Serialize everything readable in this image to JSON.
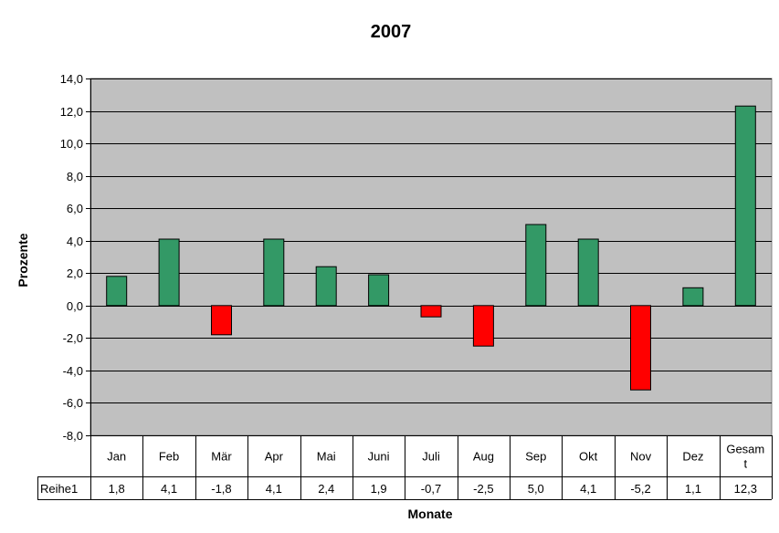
{
  "chart_data": {
    "type": "bar",
    "title": "2007",
    "xlabel": "Monate",
    "ylabel": "Prozente",
    "ylim": [
      -8,
      14
    ],
    "y_ticks": [
      "14,0",
      "12,0",
      "10,0",
      "8,0",
      "6,0",
      "4,0",
      "2,0",
      "0,0",
      "-2,0",
      "-4,0",
      "-6,0",
      "-8,0"
    ],
    "y_tick_values": [
      14,
      12,
      10,
      8,
      6,
      4,
      2,
      0,
      -2,
      -4,
      -6,
      -8
    ],
    "categories": [
      "Jan",
      "Feb",
      "Mär",
      "Apr",
      "Mai",
      "Juni",
      "Juli",
      "Aug",
      "Sep",
      "Okt",
      "Nov",
      "Dez",
      "Gesamt"
    ],
    "category_display": [
      [
        "Jan"
      ],
      [
        "Feb"
      ],
      [
        "Mär"
      ],
      [
        "Apr"
      ],
      [
        "Mai"
      ],
      [
        "Juni"
      ],
      [
        "Juli"
      ],
      [
        "Aug"
      ],
      [
        "Sep"
      ],
      [
        "Okt"
      ],
      [
        "Nov"
      ],
      [
        "Dez"
      ],
      [
        "Gesam",
        "t"
      ]
    ],
    "series": [
      {
        "name": "Reihe1",
        "values": [
          1.8,
          4.1,
          -1.8,
          4.1,
          2.4,
          1.9,
          -0.7,
          -2.5,
          5.0,
          4.1,
          -5.2,
          1.1,
          12.3
        ],
        "value_labels": [
          "1,8",
          "4,1",
          "-1,8",
          "4,1",
          "2,4",
          "1,9",
          "-0,7",
          "-2,5",
          "5,0",
          "4,1",
          "-5,2",
          "1,1",
          "12,3"
        ]
      }
    ],
    "data_table": true,
    "grid": true,
    "legend": "none"
  },
  "colors": {
    "positive": "#339966",
    "negative": "#ff0000",
    "plot_background": "#c0c0c0",
    "gridline": "#000000"
  }
}
